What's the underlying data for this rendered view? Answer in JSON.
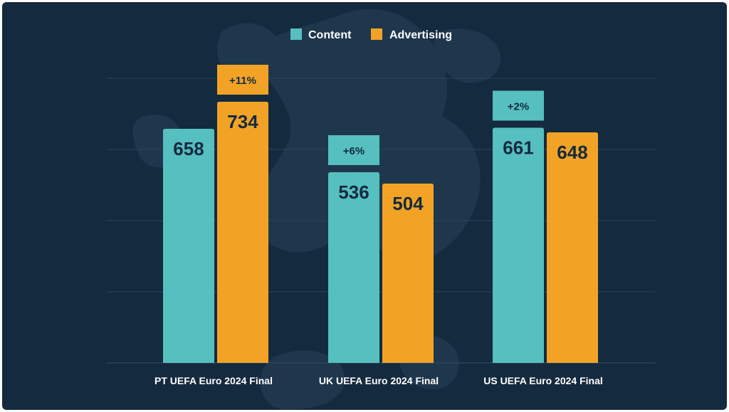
{
  "chart_data": {
    "type": "bar",
    "categories": [
      "PT UEFA Euro 2024 Final",
      "UK UEFA Euro 2024 Final",
      "US UEFA Euro 2024 Final"
    ],
    "series": [
      {
        "name": "Content",
        "values": [
          658,
          536,
          661
        ],
        "color": "#56bfc0"
      },
      {
        "name": "Advertising",
        "values": [
          734,
          504,
          648
        ],
        "color": "#f2a325"
      }
    ],
    "differences": [
      {
        "label": "+11%",
        "series": 1
      },
      {
        "label": "+6%",
        "series": 0
      },
      {
        "label": "+2%",
        "series": 0
      }
    ],
    "ylim": [
      0,
      1000
    ],
    "legend_position": "top-center",
    "grid": true,
    "colors": {
      "background": "#142a3e",
      "blob": "#1f374d",
      "grid": "#2c445a",
      "label_dark": "#142a3e",
      "label_light": "#ffffff"
    }
  }
}
